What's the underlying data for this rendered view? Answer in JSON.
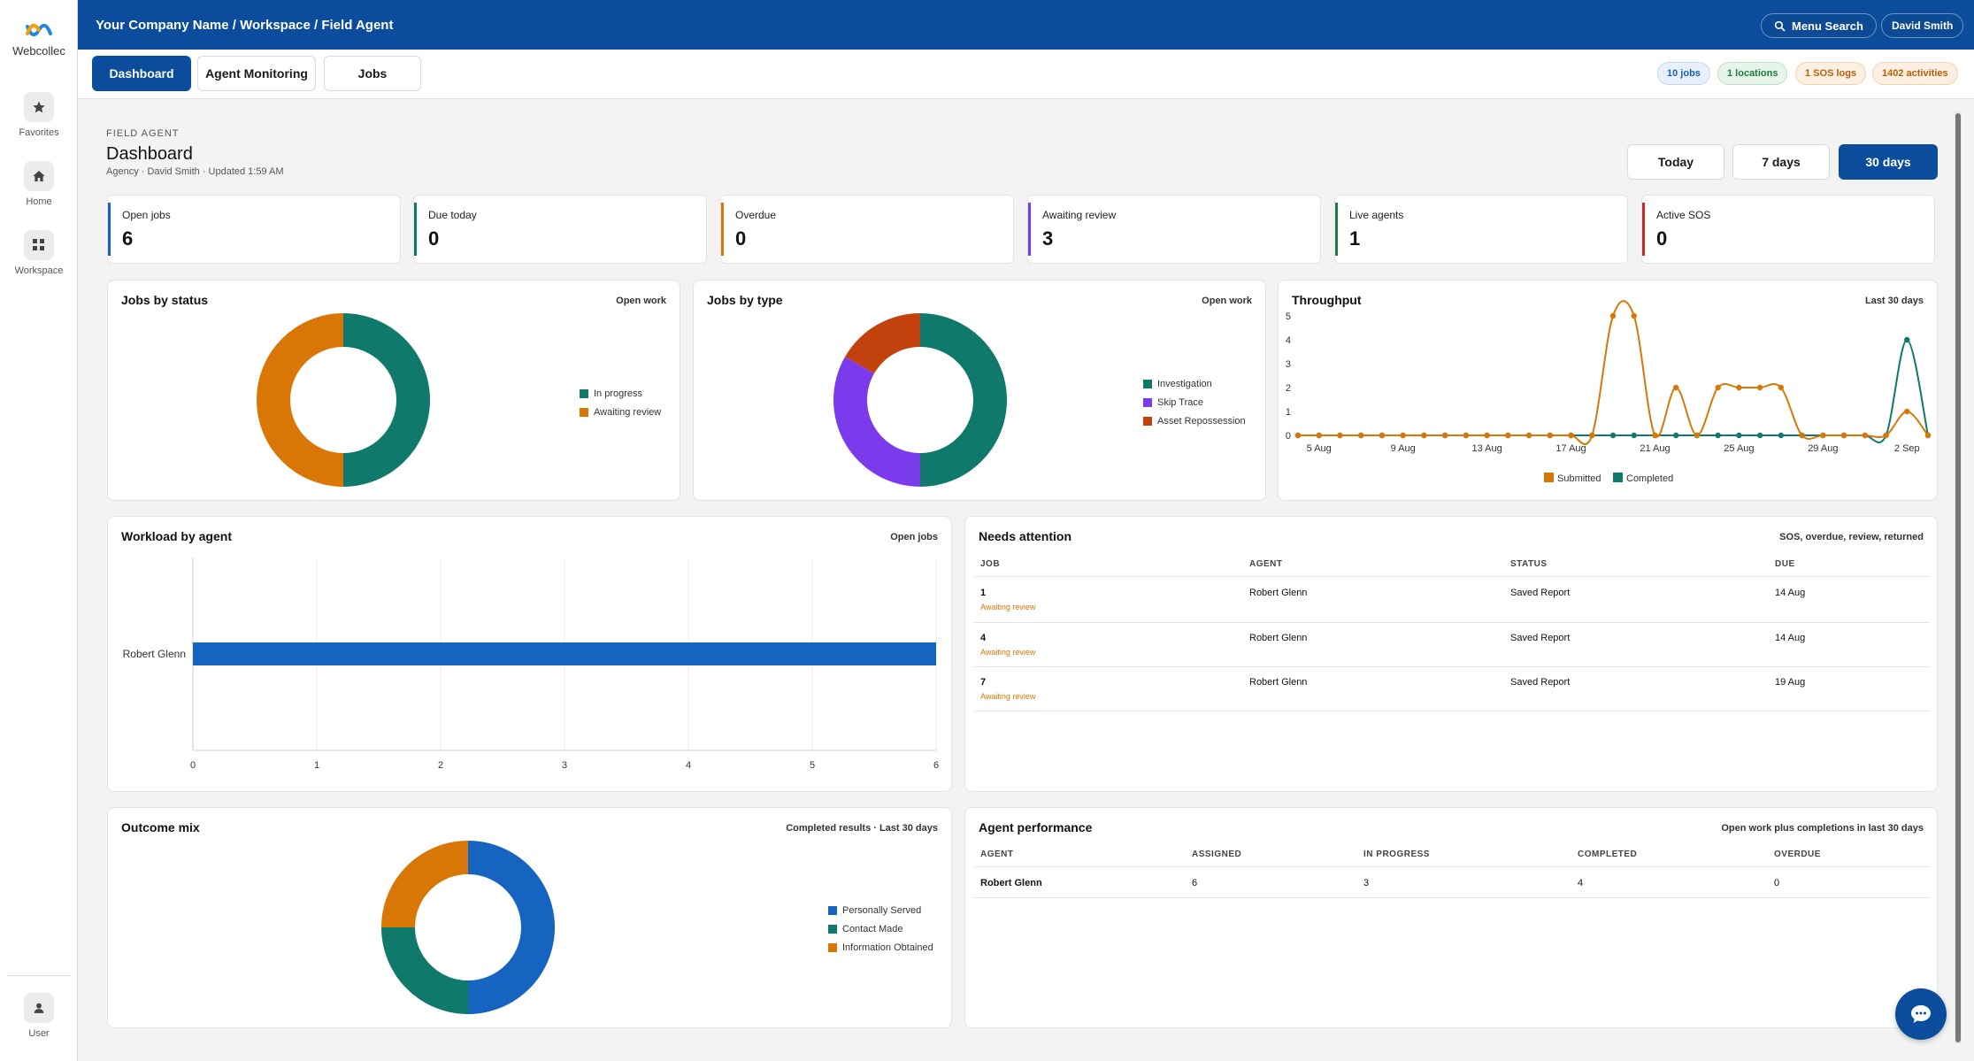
{
  "sidebar": {
    "logo_text": "Webcollec",
    "items": [
      {
        "label": "Favorites",
        "icon": "star-icon"
      },
      {
        "label": "Home",
        "icon": "home-icon"
      },
      {
        "label": "Workspace",
        "icon": "grid-icon"
      }
    ],
    "user_label": "User"
  },
  "topbar": {
    "breadcrumb": "Your Company Name / Workspace / Field Agent",
    "menu_search": "Menu Search",
    "user_name": "David Smith"
  },
  "tabs": [
    {
      "label": "Dashboard",
      "active": true
    },
    {
      "label": "Agent Monitoring",
      "active": false
    },
    {
      "label": "Jobs",
      "active": false
    }
  ],
  "pills": {
    "jobs": "10 jobs",
    "locations": "1 locations",
    "sos": "1 SOS logs",
    "activities": "1402 activities"
  },
  "header": {
    "eyebrow": "FIELD AGENT",
    "title": "Dashboard",
    "subtitle": "Agency · David Smith · Updated 1:59 AM"
  },
  "ranges": [
    {
      "label": "Today",
      "active": false
    },
    {
      "label": "7 days",
      "active": false
    },
    {
      "label": "30 days",
      "active": true
    }
  ],
  "kpis": [
    {
      "label": "Open jobs",
      "value": "6",
      "color": "#1565c0"
    },
    {
      "label": "Due today",
      "value": "0",
      "color": "#0f7a6c"
    },
    {
      "label": "Overdue",
      "value": "0",
      "color": "#d97706"
    },
    {
      "label": "Awaiting review",
      "value": "3",
      "color": "#7c3aed"
    },
    {
      "label": "Live agents",
      "value": "1",
      "color": "#1a7f4a"
    },
    {
      "label": "Active SOS",
      "value": "0",
      "color": "#c62828"
    }
  ],
  "cards": {
    "jobs_by_status": {
      "title": "Jobs by status",
      "meta": "Open work"
    },
    "jobs_by_type": {
      "title": "Jobs by type",
      "meta": "Open work"
    },
    "throughput": {
      "title": "Throughput",
      "meta": "Last 30 days"
    },
    "workload": {
      "title": "Workload by agent",
      "meta": "Open jobs"
    },
    "needs_attention": {
      "title": "Needs attention",
      "meta": "SOS, overdue, review, returned"
    },
    "outcome_mix": {
      "title": "Outcome mix",
      "meta": "Completed results · Last 30 days"
    },
    "agent_performance": {
      "title": "Agent performance",
      "meta": "Open work plus completions in last 30 days"
    }
  },
  "chart_data": [
    {
      "type": "pie",
      "chart": "jobs_by_status",
      "categories": [
        "In progress",
        "Awaiting review"
      ],
      "values": [
        3,
        3
      ],
      "colors": [
        "#0f7a6c",
        "#d97706"
      ],
      "donut": true
    },
    {
      "type": "pie",
      "chart": "jobs_by_type",
      "categories": [
        "Investigation",
        "Skip Trace",
        "Asset Repossession"
      ],
      "values": [
        3,
        2,
        1
      ],
      "colors": [
        "#0f7a6c",
        "#7c3aed",
        "#c2410c"
      ],
      "donut": true
    },
    {
      "type": "line",
      "chart": "throughput",
      "x": [
        "4 Aug",
        "5 Aug",
        "6 Aug",
        "7 Aug",
        "8 Aug",
        "9 Aug",
        "10 Aug",
        "11 Aug",
        "12 Aug",
        "13 Aug",
        "14 Aug",
        "15 Aug",
        "16 Aug",
        "17 Aug",
        "18 Aug",
        "19 Aug",
        "20 Aug",
        "21 Aug",
        "22 Aug",
        "23 Aug",
        "24 Aug",
        "25 Aug",
        "26 Aug",
        "27 Aug",
        "28 Aug",
        "29 Aug",
        "30 Aug",
        "31 Aug",
        "1 Sep",
        "2 Sep",
        "3 Sep"
      ],
      "x_ticks": [
        "5 Aug",
        "9 Aug",
        "13 Aug",
        "17 Aug",
        "21 Aug",
        "25 Aug",
        "29 Aug",
        "2 Sep"
      ],
      "series": [
        {
          "name": "Submitted",
          "color": "#d97706",
          "values": [
            0,
            0,
            0,
            0,
            0,
            0,
            0,
            0,
            0,
            0,
            0,
            0,
            0,
            0,
            0,
            5,
            5,
            0,
            2,
            0,
            2,
            2,
            2,
            2,
            0,
            0,
            0,
            0,
            0,
            1,
            0
          ]
        },
        {
          "name": "Completed",
          "color": "#0f7a6c",
          "values": [
            0,
            0,
            0,
            0,
            0,
            0,
            0,
            0,
            0,
            0,
            0,
            0,
            0,
            0,
            0,
            0,
            0,
            0,
            0,
            0,
            0,
            0,
            0,
            0,
            0,
            0,
            0,
            0,
            0,
            4,
            0
          ]
        }
      ],
      "ylim": [
        0,
        5
      ],
      "y_ticks": [
        "0",
        "1",
        "2",
        "3",
        "4",
        "5"
      ],
      "legend": "bottom",
      "grid": false
    },
    {
      "type": "bar",
      "chart": "workload",
      "orientation": "horizontal",
      "categories": [
        "Robert Glenn"
      ],
      "values": [
        6
      ],
      "color": "#1565c0",
      "xlim": [
        0,
        6
      ],
      "x_ticks": [
        "0",
        "1",
        "2",
        "3",
        "4",
        "5",
        "6"
      ],
      "grid": true
    },
    {
      "type": "pie",
      "chart": "outcome_mix",
      "categories": [
        "Personally Served",
        "Contact Made",
        "Information Obtained"
      ],
      "values": [
        2,
        1,
        1
      ],
      "colors": [
        "#1565c0",
        "#0f7a6c",
        "#d97706"
      ],
      "donut": true
    }
  ],
  "needs_attention": {
    "headers": [
      "JOB",
      "AGENT",
      "STATUS",
      "DUE"
    ],
    "rows": [
      {
        "job": "1",
        "sub": "Awaiting review",
        "agent": "Robert Glenn",
        "status": "Saved Report",
        "due": "14 Aug"
      },
      {
        "job": "4",
        "sub": "Awaiting review",
        "agent": "Robert Glenn",
        "status": "Saved Report",
        "due": "14 Aug"
      },
      {
        "job": "7",
        "sub": "Awaiting review",
        "agent": "Robert Glenn",
        "status": "Saved Report",
        "due": "19 Aug"
      }
    ]
  },
  "agent_performance": {
    "headers": [
      "AGENT",
      "ASSIGNED",
      "IN PROGRESS",
      "COMPLETED",
      "OVERDUE"
    ],
    "rows": [
      {
        "agent": "Robert Glenn",
        "assigned": "6",
        "in_progress": "3",
        "completed": "4",
        "overdue": "0"
      }
    ]
  }
}
